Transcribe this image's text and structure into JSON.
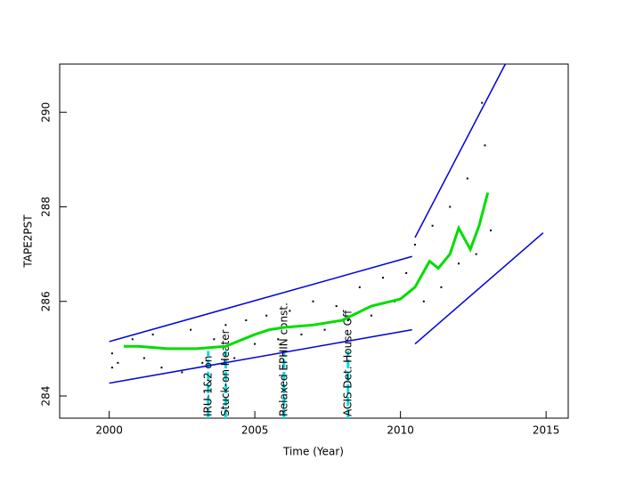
{
  "chart_data": {
    "type": "scatter",
    "xlabel": "Time (Year)",
    "ylabel": "TAPE2PST",
    "xlim": [
      1998.3,
      2015.76
    ],
    "ylim": [
      283.53,
      291.02
    ],
    "xticks": [
      2000,
      2005,
      2010,
      2015
    ],
    "yticks": [
      284,
      286,
      288,
      290
    ],
    "series": [
      {
        "mode": "scatter",
        "color": "#000000",
        "x": [
          2000.1,
          2000.1,
          2000.3,
          2000.8,
          2001.2,
          2001.5,
          2001.8,
          2002.2,
          2002.5,
          2002.8,
          2003.2,
          2003.6,
          2004.0,
          2004.3,
          2004.7,
          2005.0,
          2005.4,
          2005.8,
          2006.2,
          2006.6,
          2007.0,
          2007.4,
          2007.8,
          2008.2,
          2008.6,
          2009.0,
          2009.4,
          2009.8,
          2010.2,
          2010.5,
          2010.8,
          2011.1,
          2011.4,
          2011.7,
          2012.0,
          2012.3,
          2012.6,
          2012.9,
          2013.1,
          2012.8
        ],
        "values": [
          284.6,
          284.9,
          284.7,
          285.2,
          284.8,
          285.3,
          284.6,
          285.0,
          284.5,
          285.4,
          284.7,
          285.2,
          285.5,
          284.8,
          285.6,
          285.1,
          285.7,
          285.2,
          285.8,
          285.3,
          286.0,
          285.4,
          285.9,
          285.6,
          286.3,
          285.7,
          286.5,
          286.0,
          286.6,
          287.2,
          286.0,
          287.6,
          286.3,
          288.0,
          286.8,
          288.6,
          287.0,
          289.3,
          287.5,
          290.2
        ]
      },
      {
        "mode": "line",
        "color": "#0000dd",
        "x": [
          2000,
          2010.4
        ],
        "values": [
          285.15,
          286.95
        ]
      },
      {
        "mode": "line",
        "color": "#0000dd",
        "x": [
          2000,
          2010.4
        ],
        "values": [
          284.27,
          285.4
        ]
      },
      {
        "mode": "line",
        "color": "#0000dd",
        "x": [
          2010.5,
          2013.6
        ],
        "values": [
          287.35,
          291.02
        ]
      },
      {
        "mode": "line",
        "color": "#0000dd",
        "x": [
          2010.5,
          2014.9
        ],
        "values": [
          285.1,
          287.45
        ]
      },
      {
        "mode": "line",
        "color": "#00dd00",
        "width": 3,
        "x": [
          2000.5,
          2001,
          2002,
          2003,
          2004,
          2005,
          2005.5,
          2006,
          2007,
          2008,
          2009,
          2010,
          2010.5,
          2011,
          2011.3,
          2011.7,
          2012,
          2012.4,
          2012.7,
          2013
        ],
        "values": [
          285.05,
          285.05,
          285.0,
          285.0,
          285.05,
          285.3,
          285.4,
          285.45,
          285.5,
          285.6,
          285.9,
          286.05,
          286.3,
          286.85,
          286.7,
          287.0,
          287.55,
          287.1,
          287.6,
          288.3
        ]
      }
    ],
    "events": {
      "color": "#00dddd",
      "top": 284.95,
      "x": [
        2003.4,
        2004.0,
        2006.0,
        2008.2
      ],
      "labels": [
        "IRU-1&2 on",
        "Stuck-on Heater",
        "Relaxed EPHIN const.",
        "ACIS Det. House Off"
      ]
    }
  }
}
